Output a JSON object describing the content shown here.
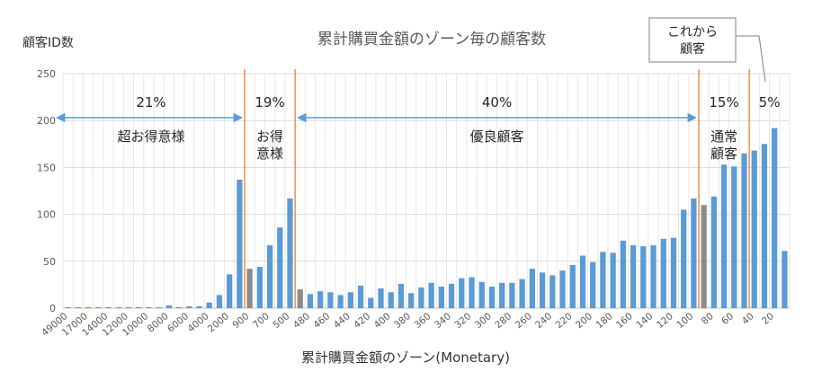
{
  "chart_data": {
    "type": "bar",
    "title": "累計購買金額のゾーン毎の顧客数",
    "xlabel": "累計購買金額のゾーン(Monetary)",
    "ylabel": "顧客ID数",
    "ylim": [
      0,
      250
    ],
    "yticks": [
      0,
      50,
      100,
      150,
      200,
      250
    ],
    "grid": true,
    "legend": "none",
    "bar_color": "#5b9bd5",
    "highlight_color": "#8c8c8c",
    "divider_color": "#ed7d31",
    "arrow_color": "#5b9bd5",
    "categories": [
      "49000",
      "",
      "17000",
      "",
      "14000",
      "",
      "12000",
      "",
      "10000",
      "",
      "8000",
      "",
      "6000",
      "",
      "4000",
      "",
      "2000",
      "",
      "900",
      "",
      "700",
      "",
      "500",
      "",
      "480",
      "",
      "460",
      "",
      "440",
      "",
      "420",
      "",
      "400",
      "",
      "380",
      "",
      "360",
      "",
      "340",
      "",
      "320",
      "",
      "300",
      "",
      "280",
      "",
      "260",
      "",
      "240",
      "",
      "220",
      "",
      "200",
      "",
      "180",
      "",
      "160",
      "",
      "140",
      "",
      "120",
      "",
      "100",
      "",
      "80",
      "",
      "60",
      "",
      "40",
      "",
      "20",
      ""
    ],
    "values": [
      1,
      1,
      1,
      1,
      1,
      1,
      1,
      1,
      1,
      1,
      3,
      1,
      2,
      2,
      6,
      14,
      36,
      137,
      42,
      44,
      67,
      86,
      117,
      20,
      15,
      18,
      17,
      14,
      17,
      24,
      11,
      21,
      17,
      26,
      16,
      22,
      27,
      23,
      26,
      32,
      33,
      28,
      23,
      27,
      27,
      31,
      42,
      38,
      35,
      40,
      46,
      56,
      49,
      60,
      59,
      72,
      67,
      66,
      67,
      74,
      75,
      105,
      117,
      110,
      119,
      153,
      151,
      165,
      168,
      175,
      192,
      61
    ],
    "highlight_indices": [
      18,
      23,
      63
    ],
    "segments": [
      {
        "percent": "21%",
        "label": "超お得意様"
      },
      {
        "percent": "19%",
        "label": "お得\n意様"
      },
      {
        "percent": "40%",
        "label": "優良顧客"
      },
      {
        "percent": "15%",
        "label": "通常\n顧客"
      },
      {
        "percent": "5%",
        "label": ""
      }
    ],
    "callout": "これから\n顧客",
    "dividers_after_index": [
      17.5,
      22.5,
      62.5,
      67.5
    ]
  }
}
